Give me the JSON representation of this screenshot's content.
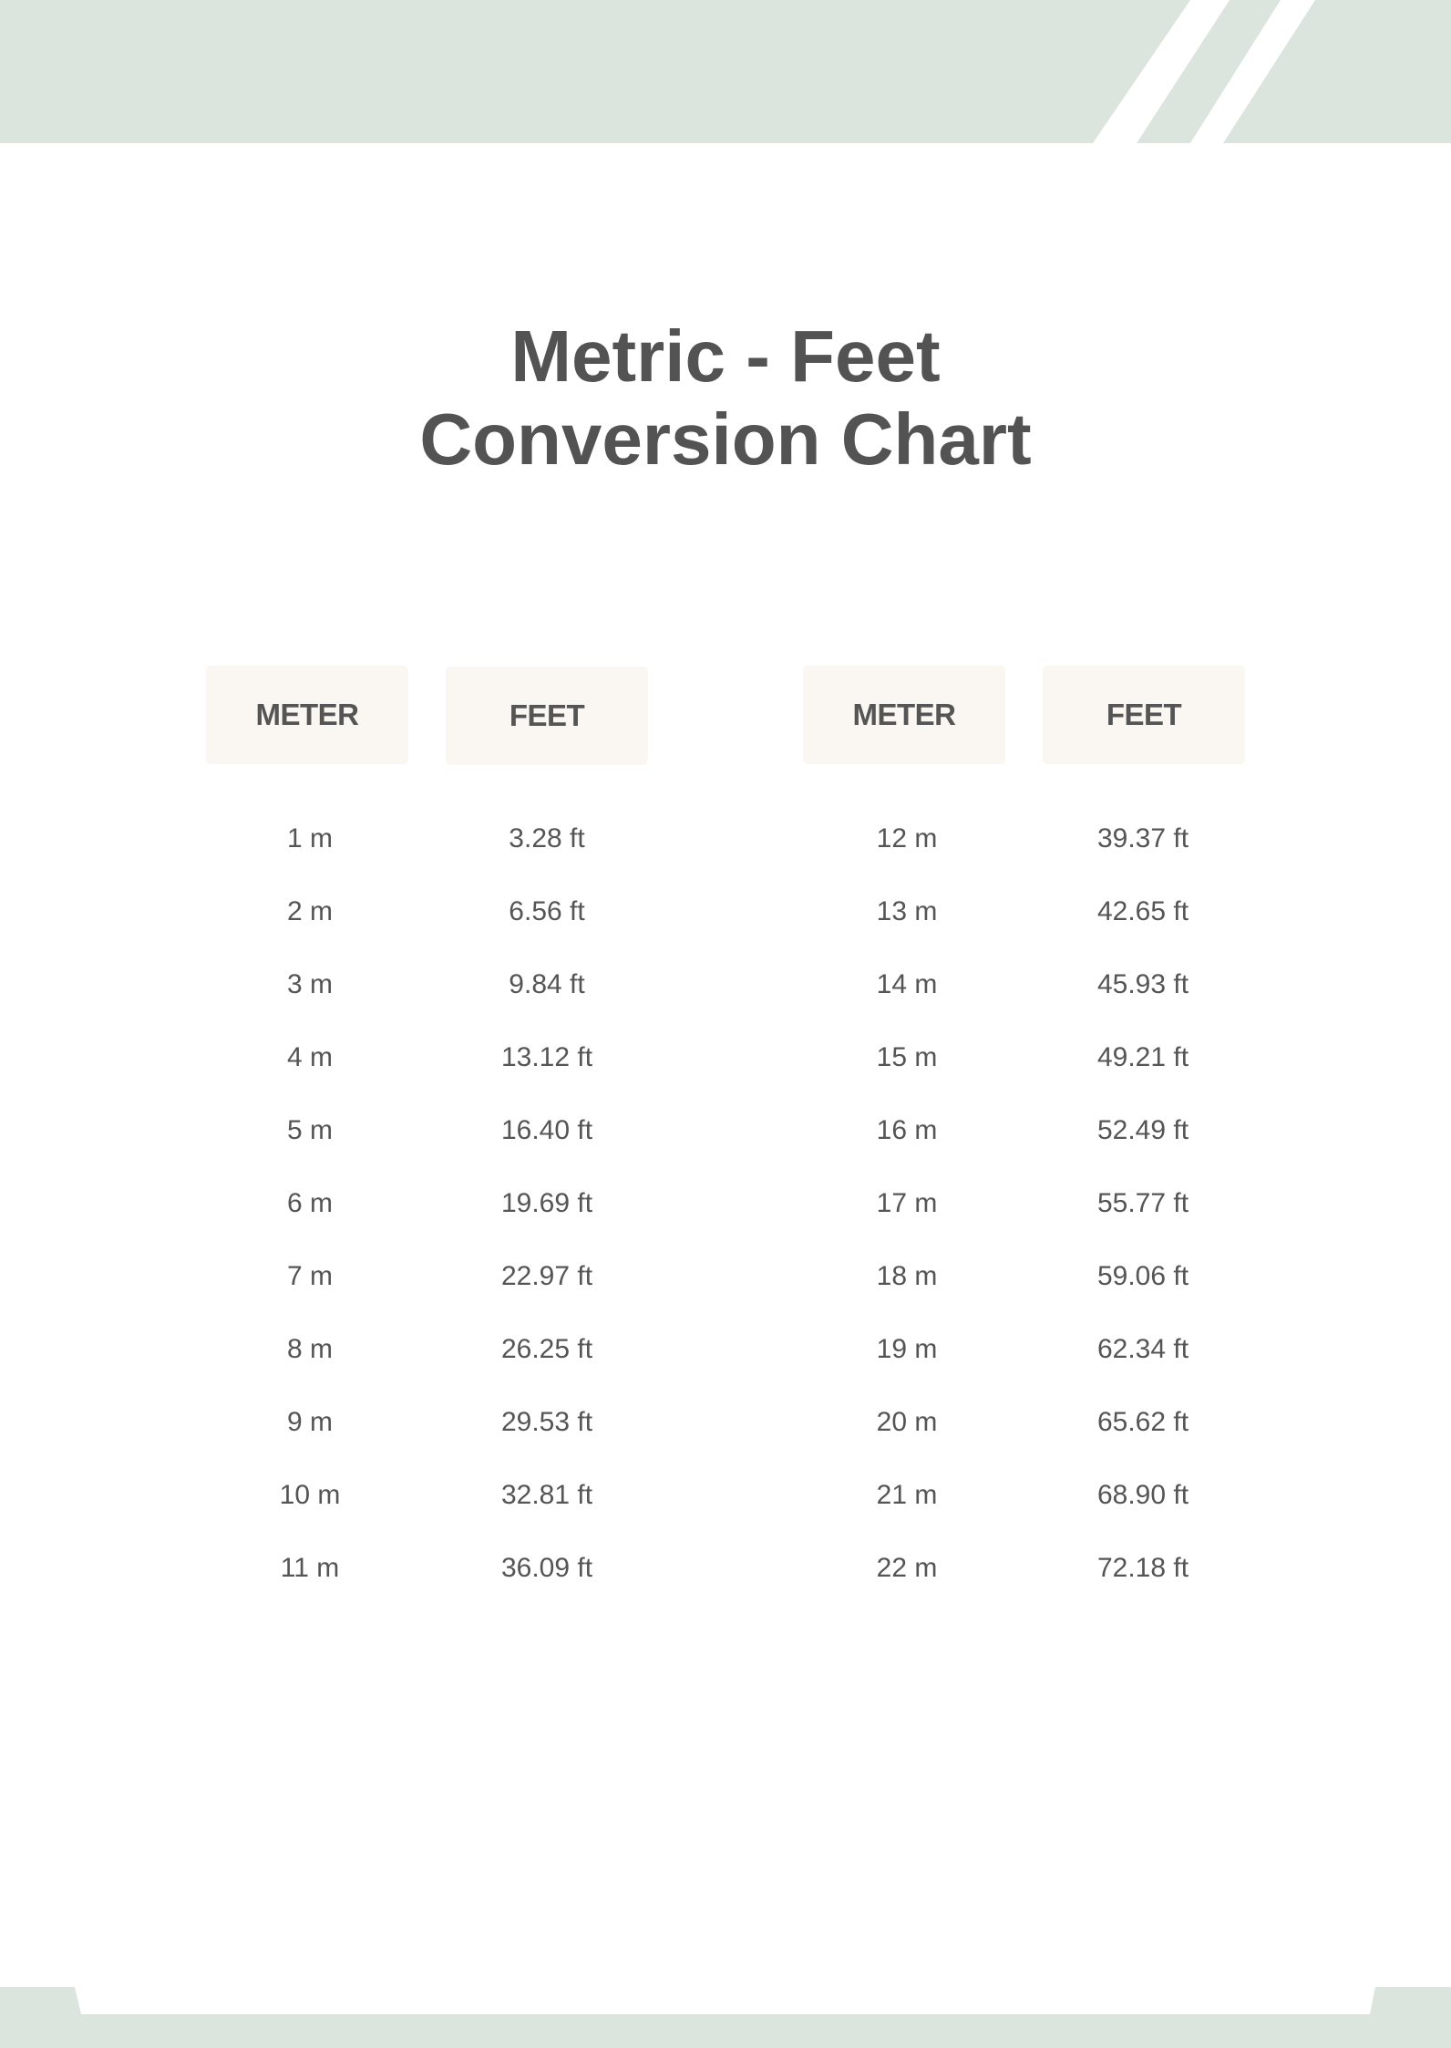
{
  "title": {
    "line1": "Metric - Feet",
    "line2": "Conversion Chart"
  },
  "colors": {
    "banner": "#dbe5dd",
    "header_bg": "#faf6f1",
    "text": "#555555"
  },
  "tables": [
    {
      "headers": [
        "METER",
        "FEET"
      ],
      "rows": [
        [
          "1 m",
          "3.28 ft"
        ],
        [
          "2 m",
          "6.56 ft"
        ],
        [
          "3 m",
          "9.84 ft"
        ],
        [
          "4 m",
          "13.12 ft"
        ],
        [
          "5 m",
          "16.40 ft"
        ],
        [
          "6 m",
          "19.69 ft"
        ],
        [
          "7 m",
          "22.97 ft"
        ],
        [
          "8 m",
          "26.25 ft"
        ],
        [
          "9 m",
          "29.53 ft"
        ],
        [
          "10 m",
          "32.81 ft"
        ],
        [
          "11 m",
          "36.09 ft"
        ]
      ]
    },
    {
      "headers": [
        "METER",
        "FEET"
      ],
      "rows": [
        [
          "12 m",
          "39.37 ft"
        ],
        [
          "13 m",
          "42.65 ft"
        ],
        [
          "14 m",
          "45.93 ft"
        ],
        [
          "15 m",
          "49.21 ft"
        ],
        [
          "16 m",
          "52.49 ft"
        ],
        [
          "17 m",
          "55.77 ft"
        ],
        [
          "18 m",
          "59.06 ft"
        ],
        [
          "19 m",
          "62.34 ft"
        ],
        [
          "20 m",
          "65.62 ft"
        ],
        [
          "21 m",
          "68.90 ft"
        ],
        [
          "22 m",
          "72.18 ft"
        ]
      ]
    }
  ]
}
